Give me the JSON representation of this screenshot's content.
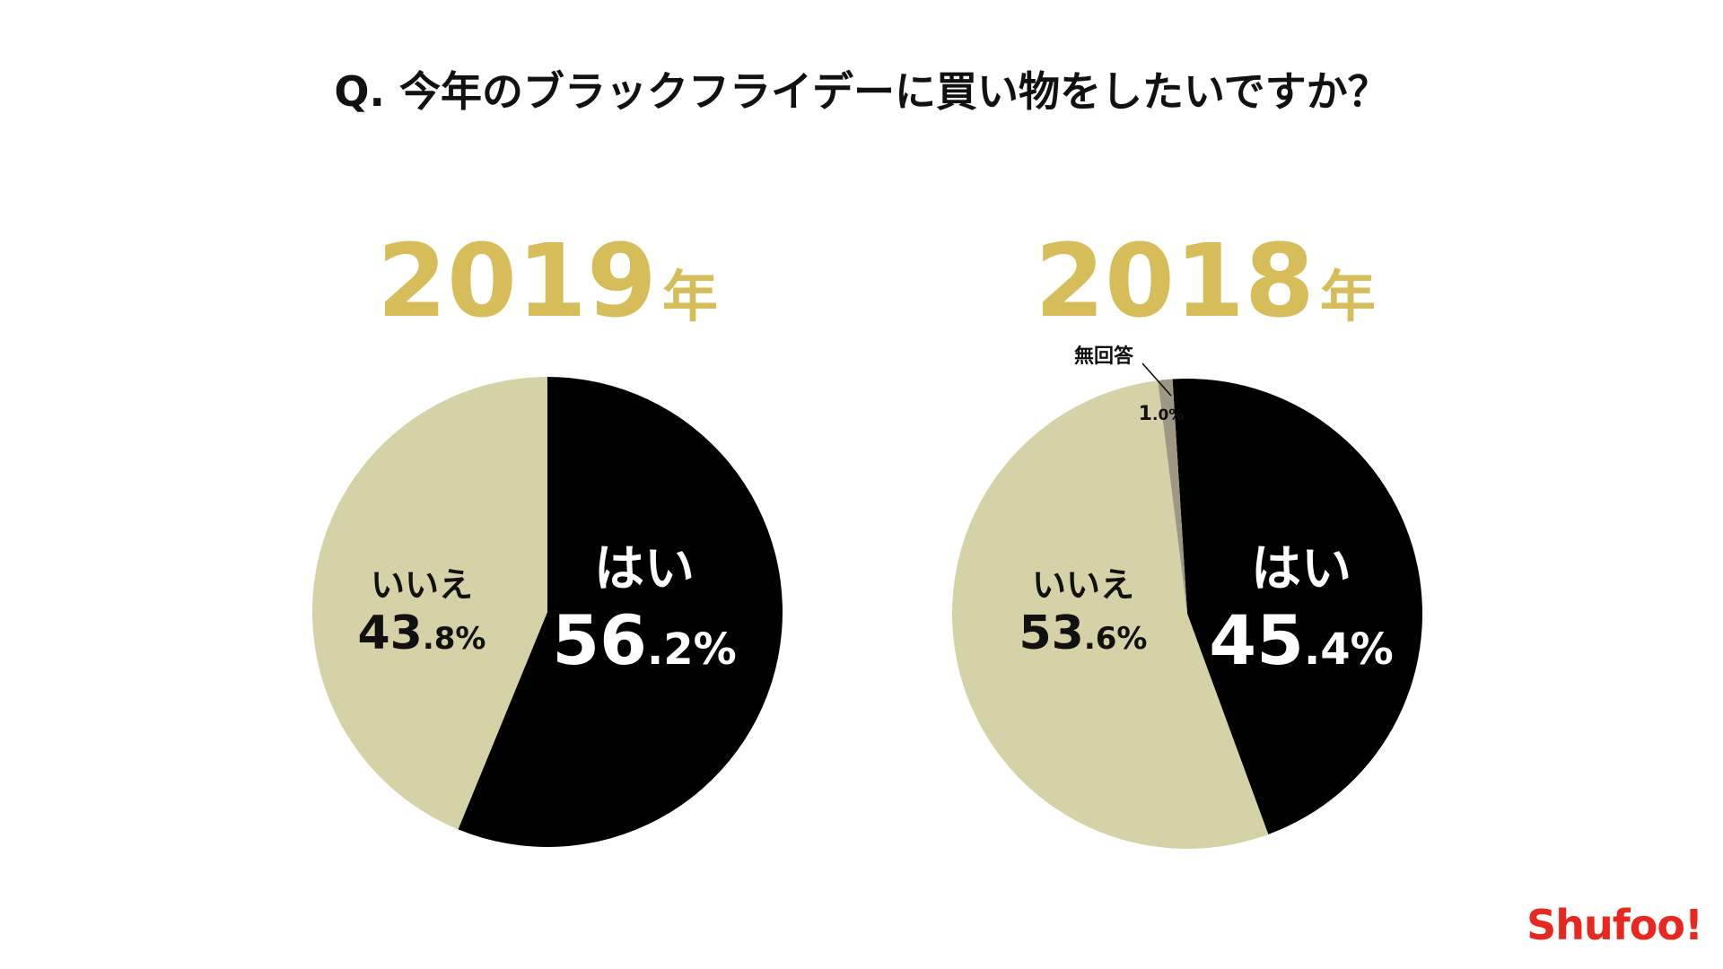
{
  "title": "Q. 今年のブラックフライデーに買い物をしたいですか？",
  "logo": "Shufoo!",
  "chart_data": [
    {
      "type": "pie",
      "title_year": "2019",
      "title_unit": "年",
      "slices": [
        {
          "label": "はい",
          "int": "56",
          "dec": ".2%",
          "value": 56.2,
          "color": "#000000",
          "text_color": "#ffffff"
        },
        {
          "label": "いいえ",
          "int": "43",
          "dec": ".8%",
          "value": 43.8,
          "color": "#d6d2a8",
          "text_color": "#111111"
        }
      ]
    },
    {
      "type": "pie",
      "title_year": "2018",
      "title_unit": "年",
      "slices": [
        {
          "label": "はい",
          "int": "45",
          "dec": ".4%",
          "value": 45.4,
          "color": "#000000",
          "text_color": "#ffffff"
        },
        {
          "label": "いいえ",
          "int": "53",
          "dec": ".6%",
          "value": 53.6,
          "color": "#d6d2a8",
          "text_color": "#111111"
        },
        {
          "label": "無回答",
          "int": "1",
          "dec": ".0%",
          "value": 1.0,
          "color": "#9d9886",
          "text_color": "#111111"
        }
      ]
    }
  ]
}
